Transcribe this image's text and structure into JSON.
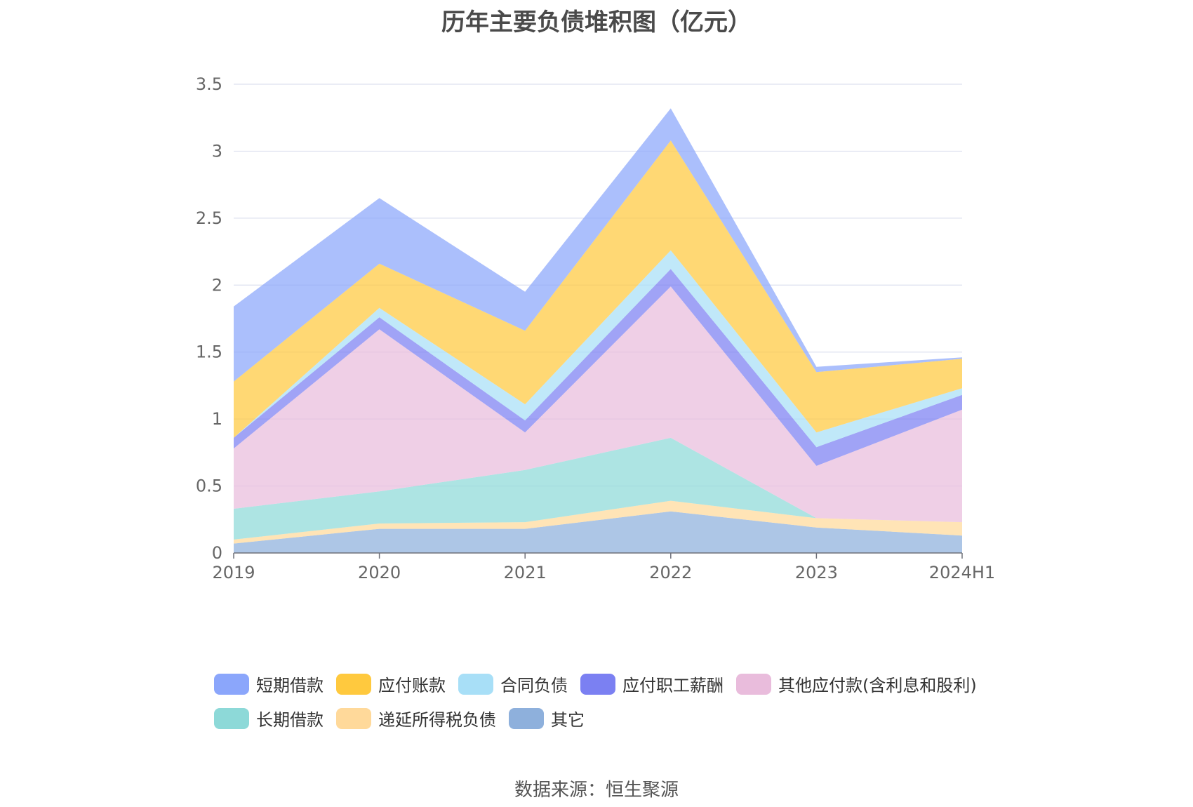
{
  "chart_data": {
    "type": "area",
    "stacked": true,
    "title": "历年主要负债堆积图（亿元）",
    "categories": [
      "2019",
      "2020",
      "2021",
      "2022",
      "2023",
      "2024H1"
    ],
    "y_ticks": [
      "0",
      "0.5",
      "1",
      "1.5",
      "2",
      "2.5",
      "3",
      "3.5"
    ],
    "ylim": [
      0,
      3.5
    ],
    "grid": true,
    "legend_position": "bottom",
    "series": [
      {
        "name": "其它",
        "color": "#8eb0dc",
        "values": [
          0.07,
          0.18,
          0.18,
          0.31,
          0.19,
          0.13
        ]
      },
      {
        "name": "递延所得税负债",
        "color": "#ffd99a",
        "values": [
          0.03,
          0.04,
          0.05,
          0.08,
          0.07,
          0.1
        ]
      },
      {
        "name": "长期借款",
        "color": "#8dd9d8",
        "values": [
          0.23,
          0.24,
          0.39,
          0.47,
          0.0,
          0.0
        ]
      },
      {
        "name": "其他应付款(含利息和股利)",
        "color": "#e9bcdc",
        "values": [
          0.45,
          1.21,
          0.28,
          1.13,
          0.39,
          0.84
        ]
      },
      {
        "name": "应付职工薪酬",
        "color": "#7b80f2",
        "values": [
          0.08,
          0.09,
          0.09,
          0.13,
          0.14,
          0.11
        ]
      },
      {
        "name": "合同负债",
        "color": "#a8dff7",
        "values": [
          0.0,
          0.07,
          0.12,
          0.14,
          0.11,
          0.05
        ]
      },
      {
        "name": "应付账款",
        "color": "#ffc93e",
        "values": [
          0.42,
          0.33,
          0.55,
          0.82,
          0.45,
          0.22
        ]
      },
      {
        "name": "短期借款",
        "color": "#8ba6fb",
        "values": [
          0.56,
          0.49,
          0.29,
          0.24,
          0.04,
          0.01
        ]
      }
    ]
  },
  "legend": {
    "row1": [
      {
        "label": "短期借款",
        "color": "#8ba6fb"
      },
      {
        "label": "应付账款",
        "color": "#ffc93e"
      },
      {
        "label": "合同负债",
        "color": "#a8dff7"
      },
      {
        "label": "应付职工薪酬",
        "color": "#7b80f2"
      },
      {
        "label": "其他应付款(含利息和股利)",
        "color": "#e9bcdc"
      }
    ],
    "row2": [
      {
        "label": "长期借款",
        "color": "#8dd9d8"
      },
      {
        "label": "递延所得税负债",
        "color": "#ffd99a"
      },
      {
        "label": "其它",
        "color": "#8eb0dc"
      }
    ]
  },
  "source": "数据来源：恒生聚源"
}
